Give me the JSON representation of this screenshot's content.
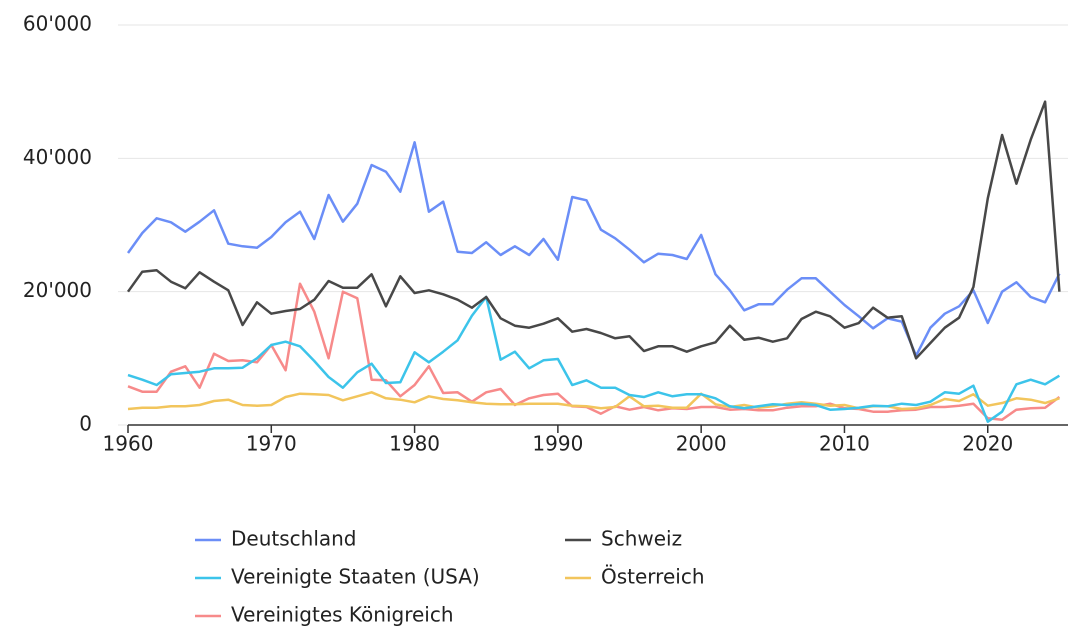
{
  "chart_data": {
    "type": "line",
    "x": [
      1960,
      1961,
      1962,
      1963,
      1964,
      1965,
      1966,
      1967,
      1968,
      1969,
      1970,
      1971,
      1972,
      1973,
      1974,
      1975,
      1976,
      1977,
      1978,
      1979,
      1980,
      1981,
      1982,
      1983,
      1984,
      1985,
      1986,
      1987,
      1988,
      1989,
      1990,
      1991,
      1992,
      1993,
      1994,
      1995,
      1996,
      1997,
      1998,
      1999,
      2000,
      2001,
      2002,
      2003,
      2004,
      2005,
      2006,
      2007,
      2008,
      2009,
      2010,
      2011,
      2012,
      2013,
      2014,
      2015,
      2016,
      2017,
      2018,
      2019,
      2020,
      2021,
      2022,
      2023,
      2024,
      2025
    ],
    "series": [
      {
        "name": "Deutschland",
        "color": "#6b8ef7",
        "values": [
          25800,
          28800,
          31000,
          30400,
          29000,
          30500,
          32200,
          27200,
          26800,
          26600,
          28200,
          30400,
          32000,
          27900,
          34500,
          30500,
          33200,
          39000,
          38000,
          35000,
          42400,
          32000,
          33500,
          26000,
          25800,
          27400,
          25500,
          26800,
          25500,
          27900,
          24800,
          34200,
          33700,
          29300,
          28000,
          26300,
          24400,
          25700,
          25500,
          24900,
          28500,
          22600,
          20200,
          17200,
          18100,
          18100,
          20300,
          22000,
          22000,
          20000,
          18000,
          16300,
          14500,
          16000,
          15500,
          10400,
          14600,
          16700,
          17800,
          20200,
          15300,
          20000,
          21400,
          19200,
          18400,
          22700
        ]
      },
      {
        "name": "Schweiz",
        "color": "#484848",
        "values": [
          20000,
          23000,
          23200,
          21500,
          20500,
          22900,
          21500,
          20200,
          15000,
          18400,
          16700,
          17100,
          17400,
          18800,
          21600,
          20600,
          20600,
          22600,
          17800,
          22300,
          19800,
          20200,
          19600,
          18800,
          17600,
          19200,
          16000,
          14900,
          14600,
          15200,
          16000,
          14000,
          14400,
          13800,
          13000,
          13300,
          11100,
          11800,
          11800,
          11000,
          11800,
          12400,
          14900,
          12800,
          13100,
          12500,
          13000,
          15900,
          17000,
          16300,
          14600,
          15300,
          17600,
          16100,
          16300,
          10000,
          12300,
          14600,
          16100,
          20700,
          34000,
          43500,
          36200,
          42800,
          48500,
          20000
        ]
      },
      {
        "name": "Vereinigte Staaten (USA)",
        "color": "#3cc4ea",
        "values": [
          7500,
          6800,
          6000,
          7600,
          7800,
          8000,
          8500,
          8500,
          8600,
          10000,
          12000,
          12500,
          11800,
          9600,
          7200,
          5600,
          7900,
          9200,
          6300,
          6400,
          10900,
          9400,
          11000,
          12700,
          16400,
          19200,
          9800,
          11000,
          8500,
          9700,
          9900,
          6000,
          6700,
          5600,
          5600,
          4500,
          4200,
          4900,
          4300,
          4600,
          4600,
          4000,
          2800,
          2500,
          2800,
          3100,
          3000,
          3200,
          3000,
          2300,
          2400,
          2600,
          2900,
          2800,
          3200,
          3000,
          3500,
          4900,
          4700,
          5900,
          500,
          2000,
          6100,
          6800,
          6100,
          7400
        ]
      },
      {
        "name": "Österreich",
        "color": "#f2c55c",
        "values": [
          2400,
          2600,
          2600,
          2800,
          2800,
          3000,
          3600,
          3800,
          3000,
          2900,
          3000,
          4200,
          4700,
          4600,
          4500,
          3700,
          4300,
          4900,
          4000,
          3800,
          3400,
          4300,
          3900,
          3700,
          3400,
          3200,
          3100,
          3100,
          3200,
          3200,
          3200,
          2900,
          2800,
          2500,
          2700,
          4300,
          2800,
          2900,
          2600,
          2600,
          4700,
          3100,
          2700,
          3000,
          2600,
          2800,
          3200,
          3400,
          3200,
          2900,
          3000,
          2500,
          2800,
          2800,
          2400,
          2500,
          3000,
          3900,
          3600,
          4600,
          2900,
          3300,
          4000,
          3800,
          3300,
          4000
        ]
      },
      {
        "name": "Vereinigtes Königreich",
        "color": "#f78a8a",
        "values": [
          5800,
          5000,
          5000,
          8000,
          8800,
          5600,
          10700,
          9600,
          9700,
          9400,
          12000,
          8200,
          21200,
          17000,
          10000,
          20000,
          19000,
          6800,
          6700,
          4300,
          6000,
          8800,
          4800,
          4900,
          3500,
          4900,
          5400,
          3000,
          4000,
          4500,
          4700,
          2800,
          2700,
          1700,
          2800,
          2300,
          2700,
          2200,
          2500,
          2400,
          2700,
          2700,
          2300,
          2400,
          2200,
          2200,
          2600,
          2800,
          2800,
          3200,
          2500,
          2400,
          2000,
          2000,
          2200,
          2300,
          2700,
          2700,
          2900,
          3200,
          1000,
          800,
          2300,
          2500,
          2600,
          4200
        ]
      }
    ],
    "xlim": [
      1960,
      2025.6
    ],
    "xticks": [
      1960,
      1970,
      1980,
      1990,
      2000,
      2010,
      2020
    ],
    "ylim": [
      0,
      60000
    ],
    "yticks": [
      0,
      {
        "value": 20000,
        "label": "20'000"
      },
      {
        "value": 40000,
        "label": "40'000"
      },
      {
        "value": 60000,
        "label": "60'000"
      }
    ],
    "grid": true
  }
}
